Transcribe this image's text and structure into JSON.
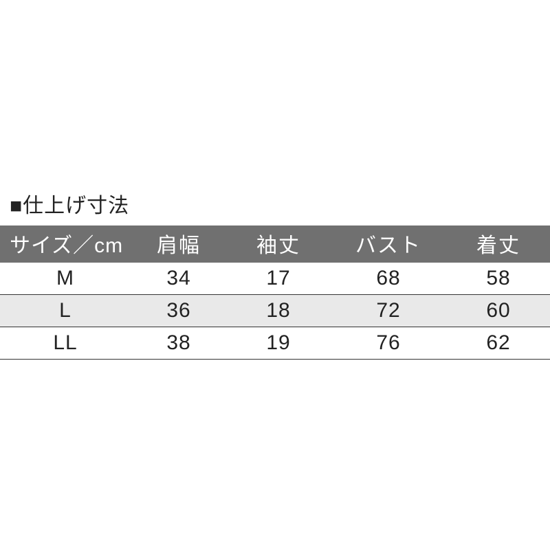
{
  "title": "■仕上げ寸法",
  "table": {
    "columns": [
      "サイズ／cm",
      "肩幅",
      "袖丈",
      "バスト",
      "着丈"
    ],
    "rows": [
      {
        "size": "M",
        "c1": "34",
        "c2": "17",
        "c3": "68",
        "c4": "58",
        "alt": false
      },
      {
        "size": "L",
        "c1": "36",
        "c2": "18",
        "c3": "72",
        "c4": "60",
        "alt": true
      },
      {
        "size": "LL",
        "c1": "38",
        "c2": "19",
        "c3": "76",
        "c4": "62",
        "alt": false
      }
    ],
    "header_bg": "#707070",
    "header_fg": "#ffffff",
    "row_alt_bg": "#e9e9e9",
    "border_color": "#333333",
    "text_color": "#222222",
    "font_size_pt": 22
  }
}
